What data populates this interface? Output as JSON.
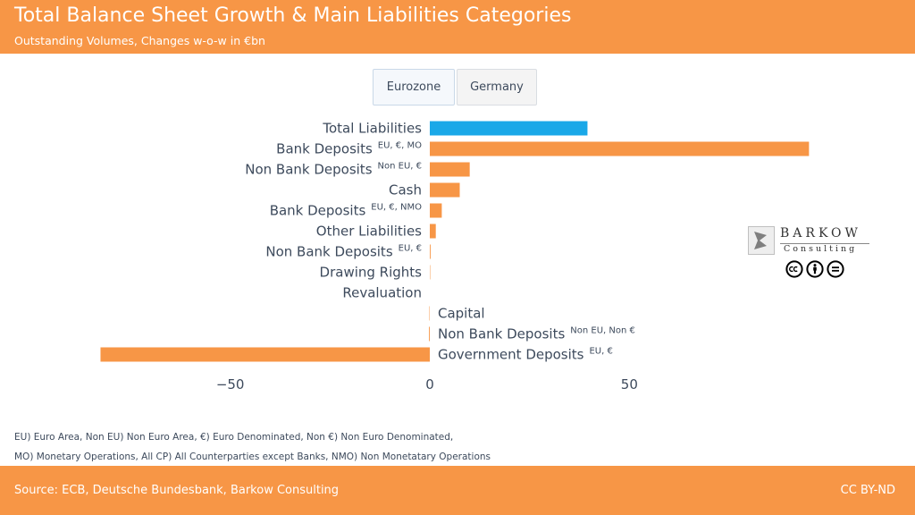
{
  "header": {
    "title": "Total Balance Sheet Growth & Main Liabilities Categories",
    "subtitle": "Outstanding Volumes, Changes w-o-w in €bn"
  },
  "tabs": [
    {
      "label": "Eurozone",
      "active": true
    },
    {
      "label": "Germany",
      "active": false
    }
  ],
  "chart_data": {
    "type": "bar",
    "orientation": "horizontal",
    "categories": [
      {
        "label": "Total Liabilities",
        "sup": ""
      },
      {
        "label": "Bank Deposits",
        "sup": "EU, €, MO"
      },
      {
        "label": "Non Bank Deposits",
        "sup": "Non EU, €"
      },
      {
        "label": "Cash",
        "sup": ""
      },
      {
        "label": "Bank Deposits",
        "sup": "EU, €, NMO"
      },
      {
        "label": "Other Liabilities",
        "sup": ""
      },
      {
        "label": "Non Bank Deposits",
        "sup": "EU, €"
      },
      {
        "label": "Drawing Rights",
        "sup": ""
      },
      {
        "label": "Revaluation",
        "sup": ""
      },
      {
        "label": "Capital",
        "sup": ""
      },
      {
        "label": "Non Bank Deposits",
        "sup": "Non EU, Non €"
      },
      {
        "label": "Government Deposits",
        "sup": "EU, €"
      }
    ],
    "values": [
      39.5,
      95,
      10,
      7.5,
      3,
      1.5,
      0.2,
      0.1,
      0,
      -0.1,
      -0.2,
      -82.5
    ],
    "colors": [
      "#1aa8e8",
      "#f79646",
      "#f79646",
      "#f79646",
      "#f79646",
      "#f79646",
      "#f79646",
      "#f79646",
      "#f79646",
      "#f79646",
      "#f79646",
      "#f79646"
    ],
    "xticks": [
      -50,
      0,
      50
    ],
    "xtick_labels": [
      "−50",
      "0",
      "50"
    ],
    "xlim": [
      -90,
      100
    ],
    "grid": false,
    "legend": "none"
  },
  "notes": [
    "EU) Euro Area, Non EU) Non Euro Area, €) Euro Denominated, Non €) Non Euro Denominated,",
    "MO) Monetary Operations, All CP) All Counterparties except Banks, NMO) Non Monetatary Operations"
  ],
  "logo": {
    "name": "BARKOW",
    "sub": "Consulting",
    "icons": [
      "cc-icon",
      "by-icon",
      "nd-icon"
    ]
  },
  "footer": {
    "source": "Source: ECB, Deutsche Bundesbank, Barkow Consulting",
    "license": "CC BY-ND"
  }
}
